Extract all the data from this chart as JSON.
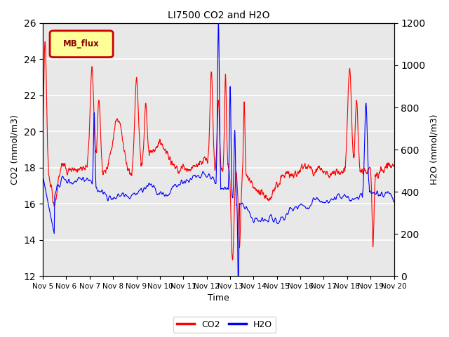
{
  "title": "LI7500 CO2 and H2O",
  "xlabel": "Time",
  "ylabel_left": "CO2 (mmol/m3)",
  "ylabel_right": "H2O (mmol/m3)",
  "ylim_left": [
    12,
    26
  ],
  "ylim_right": [
    0,
    1200
  ],
  "yticks_left": [
    12,
    14,
    16,
    18,
    20,
    22,
    24,
    26
  ],
  "yticks_right": [
    0,
    200,
    400,
    600,
    800,
    1000,
    1200
  ],
  "xtick_labels": [
    "Nov 5",
    "Nov 6",
    "Nov 7",
    "Nov 8",
    "Nov 9",
    "Nov 10",
    "Nov 11",
    "Nov 12",
    "Nov 13",
    "Nov 14",
    "Nov 15",
    "Nov 16",
    "Nov 17",
    "Nov 18",
    "Nov 19",
    "Nov 20"
  ],
  "color_co2": "#ff0000",
  "color_h2o": "#0000ff",
  "legend_box_color": "#ffff99",
  "legend_box_edge": "#cc0000",
  "legend_label": "MB_flux",
  "plot_bg_color": "#e8e8e8",
  "grid_color": "#ffffff",
  "n_days": 15,
  "n_points": 2160
}
